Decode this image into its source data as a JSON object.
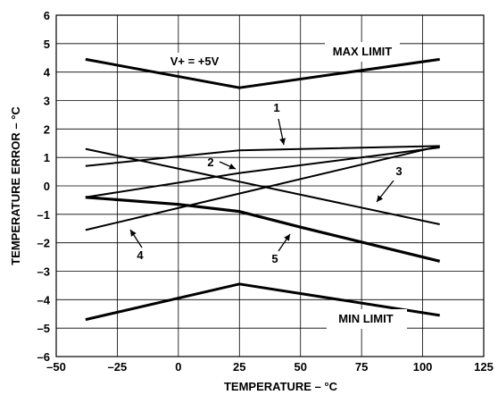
{
  "chart_data": {
    "type": "line",
    "title": "",
    "xlabel": "TEMPERATURE – °C",
    "ylabel": "TEMPERATURE ERROR – °C",
    "xlim": [
      -50,
      125
    ],
    "ylim": [
      -6,
      6
    ],
    "xticks": [
      -50,
      -25,
      0,
      25,
      50,
      75,
      100,
      125
    ],
    "yticks": [
      -6,
      -5,
      -4,
      -3,
      -2,
      -1,
      0,
      1,
      2,
      3,
      4,
      5,
      6
    ],
    "xtick_labels": [
      "–50",
      "–25",
      "0",
      "25",
      "50",
      "75",
      "100",
      "125"
    ],
    "ytick_labels": [
      "–6",
      "–5",
      "–4",
      "–3",
      "–2",
      "–1",
      "0",
      "1",
      "2",
      "3",
      "4",
      "5",
      "6"
    ],
    "grid": true,
    "series": [
      {
        "name": "MAX LIMIT",
        "x": [
          -38,
          25,
          107
        ],
        "y": [
          4.45,
          3.45,
          4.45
        ]
      },
      {
        "name": "MIN LIMIT",
        "x": [
          -38,
          25,
          107
        ],
        "y": [
          -4.7,
          -3.45,
          -4.55
        ]
      },
      {
        "name": "1",
        "x": [
          -38,
          25,
          107
        ],
        "y": [
          0.7,
          1.25,
          1.4
        ]
      },
      {
        "name": "2",
        "x": [
          -38,
          25,
          107
        ],
        "y": [
          -0.4,
          0.45,
          1.35
        ]
      },
      {
        "name": "3",
        "x": [
          -38,
          107
        ],
        "y": [
          1.3,
          -1.35
        ]
      },
      {
        "name": "4",
        "x": [
          -38,
          107
        ],
        "y": [
          -1.55,
          1.4
        ]
      },
      {
        "name": "5",
        "x": [
          -38,
          0,
          25,
          50,
          107
        ],
        "y": [
          -0.4,
          -0.65,
          -0.9,
          -1.45,
          -2.65
        ]
      }
    ],
    "annotations": [
      {
        "text": "V+ = +5V"
      },
      {
        "text": "MAX LIMIT"
      },
      {
        "text": "MIN LIMIT"
      },
      {
        "text": "1"
      },
      {
        "text": "2"
      },
      {
        "text": "3"
      },
      {
        "text": "4"
      },
      {
        "text": "5"
      }
    ]
  }
}
